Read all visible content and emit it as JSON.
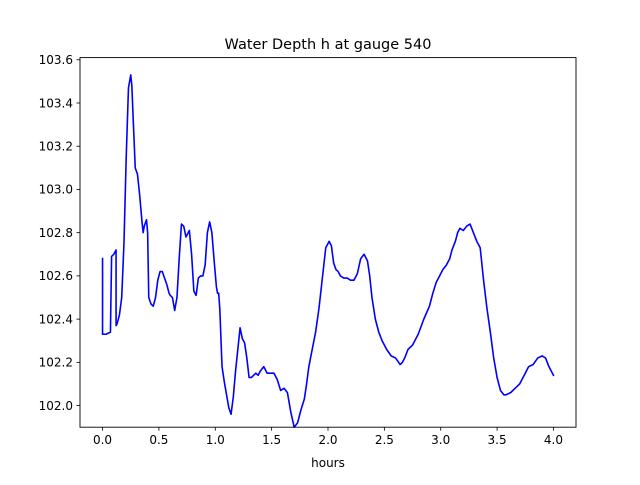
{
  "chart_data": {
    "type": "line",
    "title": "Water Depth h at gauge 540",
    "xlabel": "hours",
    "ylabel": "",
    "xlim": [
      -0.2,
      4.2
    ],
    "ylim": [
      101.9,
      103.61
    ],
    "x_ticks": [
      0.0,
      0.5,
      1.0,
      1.5,
      2.0,
      2.5,
      3.0,
      3.5,
      4.0
    ],
    "x_tick_labels": [
      "0.0",
      "0.5",
      "1.0",
      "1.5",
      "2.0",
      "2.5",
      "3.0",
      "3.5",
      "4.0"
    ],
    "y_ticks": [
      102.0,
      102.2,
      102.4,
      102.6,
      102.8,
      103.0,
      103.2,
      103.4,
      103.6
    ],
    "y_tick_labels": [
      "102.0",
      "102.2",
      "102.4",
      "102.6",
      "102.8",
      "103.0",
      "103.2",
      "103.4",
      "103.6"
    ],
    "grid": false,
    "series": [
      {
        "color": "#0000ff",
        "x": [
          0.0,
          0.0,
          0.005,
          0.03,
          0.07,
          0.08,
          0.08,
          0.1,
          0.12,
          0.12,
          0.13,
          0.15,
          0.17,
          0.19,
          0.21,
          0.23,
          0.25,
          0.26,
          0.27,
          0.29,
          0.31,
          0.33,
          0.35,
          0.36,
          0.37,
          0.39,
          0.4,
          0.41,
          0.43,
          0.45,
          0.47,
          0.49,
          0.51,
          0.53,
          0.55,
          0.57,
          0.59,
          0.6,
          0.62,
          0.64,
          0.66,
          0.68,
          0.7,
          0.72,
          0.74,
          0.76,
          0.77,
          0.79,
          0.81,
          0.83,
          0.85,
          0.87,
          0.89,
          0.91,
          0.93,
          0.95,
          0.97,
          0.99,
          1.01,
          1.02,
          1.03,
          1.04,
          1.06,
          1.08,
          1.1,
          1.12,
          1.14,
          1.16,
          1.18,
          1.2,
          1.22,
          1.24,
          1.26,
          1.28,
          1.3,
          1.32,
          1.34,
          1.36,
          1.38,
          1.4,
          1.43,
          1.46,
          1.49,
          1.52,
          1.55,
          1.58,
          1.61,
          1.64,
          1.67,
          1.7,
          1.73,
          1.76,
          1.79,
          1.81,
          1.83,
          1.86,
          1.89,
          1.92,
          1.95,
          1.98,
          2.01,
          2.03,
          2.05,
          2.07,
          2.09,
          2.11,
          2.14,
          2.17,
          2.2,
          2.23,
          2.26,
          2.29,
          2.32,
          2.35,
          2.37,
          2.39,
          2.42,
          2.45,
          2.48,
          2.52,
          2.56,
          2.6,
          2.64,
          2.66,
          2.68,
          2.71,
          2.75,
          2.8,
          2.85,
          2.9,
          2.93,
          2.96,
          2.99,
          3.02,
          3.05,
          3.08,
          3.1,
          3.13,
          3.15,
          3.17,
          3.2,
          3.23,
          3.26,
          3.29,
          3.32,
          3.35,
          3.38,
          3.41,
          3.44,
          3.47,
          3.5,
          3.53,
          3.56,
          3.58,
          3.62,
          3.66,
          3.7,
          3.74,
          3.78,
          3.82,
          3.86,
          3.9,
          3.93,
          3.96,
          4.0
        ],
        "y": [
          102.68,
          102.33,
          102.33,
          102.33,
          102.34,
          102.68,
          102.69,
          102.7,
          102.72,
          102.37,
          102.38,
          102.42,
          102.5,
          102.75,
          103.15,
          103.47,
          103.53,
          103.48,
          103.35,
          103.1,
          103.07,
          102.97,
          102.85,
          102.8,
          102.83,
          102.86,
          102.8,
          102.5,
          102.47,
          102.46,
          102.5,
          102.58,
          102.62,
          102.62,
          102.59,
          102.56,
          102.52,
          102.51,
          102.5,
          102.44,
          102.5,
          102.68,
          102.84,
          102.83,
          102.78,
          102.8,
          102.81,
          102.7,
          102.53,
          102.51,
          102.59,
          102.6,
          102.6,
          102.65,
          102.8,
          102.85,
          102.8,
          102.67,
          102.55,
          102.52,
          102.52,
          102.45,
          102.18,
          102.11,
          102.05,
          101.99,
          101.96,
          102.04,
          102.16,
          102.26,
          102.36,
          102.31,
          102.29,
          102.22,
          102.13,
          102.13,
          102.14,
          102.15,
          102.14,
          102.16,
          102.18,
          102.15,
          102.15,
          102.15,
          102.12,
          102.07,
          102.08,
          102.06,
          101.97,
          101.9,
          101.92,
          101.98,
          102.03,
          102.1,
          102.18,
          102.26,
          102.34,
          102.45,
          102.59,
          102.73,
          102.76,
          102.74,
          102.66,
          102.63,
          102.62,
          102.6,
          102.59,
          102.59,
          102.58,
          102.58,
          102.61,
          102.68,
          102.7,
          102.67,
          102.6,
          102.5,
          102.4,
          102.34,
          102.3,
          102.26,
          102.23,
          102.22,
          102.19,
          102.2,
          102.22,
          102.26,
          102.28,
          102.33,
          102.4,
          102.46,
          102.52,
          102.57,
          102.6,
          102.63,
          102.65,
          102.68,
          102.72,
          102.76,
          102.8,
          102.82,
          102.81,
          102.83,
          102.84,
          102.8,
          102.76,
          102.73,
          102.58,
          102.45,
          102.34,
          102.22,
          102.13,
          102.07,
          102.05,
          102.05,
          102.06,
          102.08,
          102.1,
          102.14,
          102.18,
          102.19,
          102.22,
          102.23,
          102.22,
          102.18,
          102.14
        ]
      }
    ]
  }
}
